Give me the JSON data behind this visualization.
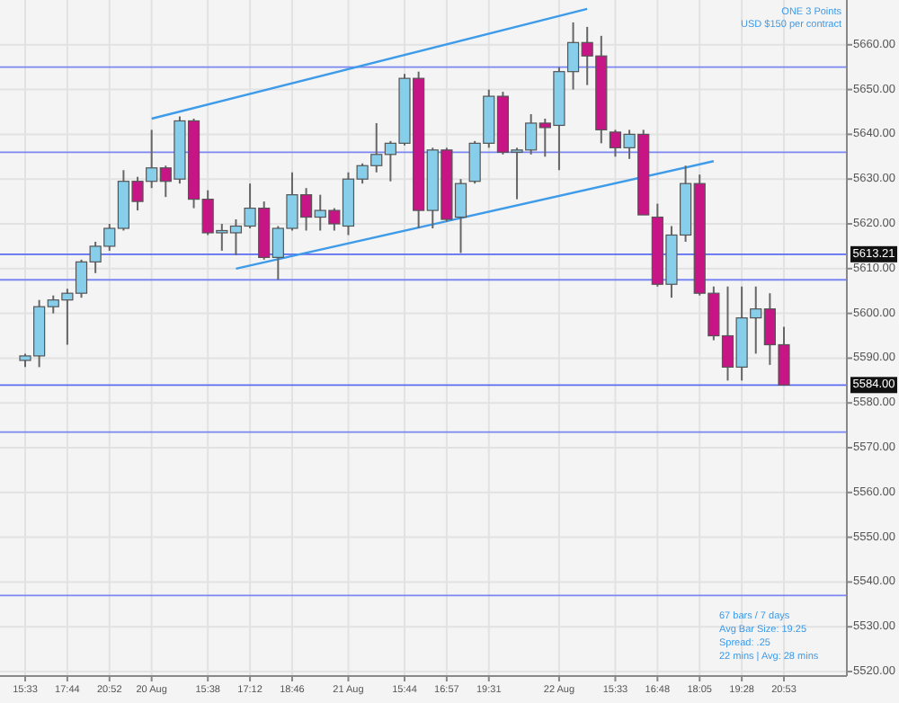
{
  "chart_data": {
    "type": "candlestick",
    "categories": [
      "15:33",
      null,
      null,
      "17:44",
      null,
      null,
      "20:52",
      null,
      null,
      "20 Aug",
      null,
      null,
      null,
      "15:38",
      null,
      null,
      "17:12",
      null,
      null,
      "18:46",
      null,
      null,
      null,
      "21 Aug",
      null,
      null,
      null,
      "15:44",
      null,
      null,
      "16:57",
      null,
      null,
      "19:31",
      null,
      null,
      null,
      null,
      "22 Aug",
      null,
      null,
      null,
      "15:33",
      null,
      null,
      "16:48",
      null,
      null,
      "18:05",
      null,
      null,
      "19:28",
      null,
      null,
      "20:53"
    ],
    "ohlc": [
      [
        5589.5,
        5591,
        5588,
        5590.5
      ],
      [
        5590.5,
        5603,
        5588,
        5601.5
      ],
      [
        5601.5,
        5604,
        5600,
        5603
      ],
      [
        5603,
        5605.5,
        5593,
        5604.5
      ],
      [
        5604.5,
        5612,
        5603.5,
        5611.5
      ],
      [
        5611.5,
        5616,
        5609,
        5615
      ],
      [
        5615,
        5620,
        5614,
        5619
      ],
      [
        5619,
        5632,
        5618.5,
        5629.5
      ],
      [
        5629.5,
        5630.5,
        5623,
        5625
      ],
      [
        5629.5,
        5641,
        5628,
        5632.5
      ],
      [
        5632.5,
        5633,
        5626,
        5629.5
      ],
      [
        5630,
        5644,
        5629,
        5643
      ],
      [
        5643,
        5643.5,
        5623.5,
        5625.5
      ],
      [
        5625.5,
        5627.5,
        5617.5,
        5618
      ],
      [
        5618,
        5620,
        5614,
        5618.5
      ],
      [
        5618,
        5621,
        5613,
        5619.5
      ],
      [
        5619.5,
        5629,
        5619,
        5623.5
      ],
      [
        5623.5,
        5625,
        5612,
        5612.5
      ],
      [
        5612.5,
        5619.5,
        5607.5,
        5619
      ],
      [
        5619,
        5631.5,
        5618.5,
        5626.5
      ],
      [
        5626.5,
        5628,
        5618.5,
        5621.5
      ],
      [
        5621.5,
        5626.5,
        5618.5,
        5623
      ],
      [
        5623,
        5623.5,
        5618.5,
        5620
      ],
      [
        5619.5,
        5631.5,
        5617.5,
        5630
      ],
      [
        5630,
        5633.5,
        5629,
        5633
      ],
      [
        5633,
        5642.5,
        5631.5,
        5635.5
      ],
      [
        5635.5,
        5638.5,
        5629.5,
        5638
      ],
      [
        5638,
        5653.5,
        5637.5,
        5652.5
      ],
      [
        5652.5,
        5654,
        5619,
        5623
      ],
      [
        5623,
        5637,
        5619,
        5636.5
      ],
      [
        5636.5,
        5637,
        5620.5,
        5621
      ],
      [
        5621.5,
        5630,
        5613.5,
        5629
      ],
      [
        5629.5,
        5638.5,
        5629,
        5638
      ],
      [
        5638,
        5650,
        5637,
        5648.5
      ],
      [
        5648.5,
        5649.5,
        5635.5,
        5636
      ],
      [
        5636,
        5637,
        5625.5,
        5636.5
      ],
      [
        5636.5,
        5644.5,
        5635.5,
        5642.5
      ],
      [
        5642.5,
        5643.5,
        5635,
        5641.5
      ],
      [
        5642,
        5655,
        5632,
        5654
      ],
      [
        5654,
        5665,
        5650,
        5660.5
      ],
      [
        5660.5,
        5664,
        5651,
        5657.5
      ],
      [
        5657.5,
        5662,
        5638,
        5641
      ],
      [
        5640.5,
        5641,
        5635,
        5637
      ],
      [
        5637,
        5641,
        5634.5,
        5640
      ],
      [
        5640,
        5641,
        5622,
        5622
      ],
      [
        5621.5,
        5624.5,
        5606,
        5606.5
      ],
      [
        5606.5,
        5619.5,
        5603.5,
        5617.5
      ],
      [
        5617.5,
        5633,
        5616,
        5629
      ],
      [
        5629,
        5631,
        5604,
        5604.5
      ],
      [
        5604.5,
        5606,
        5594,
        5595
      ],
      [
        5595,
        5606,
        5585,
        5588
      ],
      [
        5588,
        5606,
        5585,
        5599
      ],
      [
        5599,
        5606,
        5591,
        5601
      ],
      [
        5601,
        5604.5,
        5588.5,
        5593
      ],
      [
        5593,
        5597,
        5584,
        5584
      ]
    ],
    "series": [
      {
        "type": "line",
        "color": "#3d9be9",
        "values": [
          null,
          null,
          null,
          null,
          null,
          null,
          null,
          null,
          null,
          5643.5,
          null,
          null,
          null,
          null,
          null,
          null,
          null,
          null,
          null,
          null,
          null,
          null,
          null,
          null,
          null,
          null,
          null,
          null,
          null,
          null,
          null,
          null,
          null,
          null,
          null,
          null,
          null,
          null,
          null,
          null,
          5668,
          null,
          null,
          null,
          null,
          null,
          null,
          null,
          null,
          null,
          null,
          null,
          null,
          null,
          null
        ]
      },
      {
        "type": "line",
        "color": "#3d9be9",
        "values": [
          null,
          null,
          null,
          null,
          null,
          null,
          null,
          null,
          null,
          null,
          null,
          null,
          null,
          null,
          null,
          5610,
          null,
          null,
          null,
          null,
          null,
          null,
          null,
          null,
          null,
          null,
          null,
          null,
          null,
          null,
          null,
          null,
          null,
          null,
          null,
          null,
          null,
          null,
          null,
          null,
          null,
          null,
          null,
          null,
          null,
          null,
          null,
          null,
          null,
          5634,
          null,
          null,
          null,
          null,
          null
        ]
      }
    ],
    "ylim": [
      5519,
      5670
    ],
    "yticks": [
      {
        "value": 5520,
        "label": "5520.00"
      },
      {
        "value": 5530,
        "label": "5530.00"
      },
      {
        "value": 5540,
        "label": "5540.00"
      },
      {
        "value": 5550,
        "label": "5550.00"
      },
      {
        "value": 5560,
        "label": "5560.00"
      },
      {
        "value": 5570,
        "label": "5570.00"
      },
      {
        "value": 5580,
        "label": "5580.00"
      },
      {
        "value": 5590,
        "label": "5590.00"
      },
      {
        "value": 5600,
        "label": "5600.00"
      },
      {
        "value": 5610,
        "label": "5610.00"
      },
      {
        "value": 5620,
        "label": "5620.00"
      },
      {
        "value": 5630,
        "label": "5630.00"
      },
      {
        "value": 5640,
        "label": "5640.00"
      },
      {
        "value": 5650,
        "label": "5650.00"
      },
      {
        "value": 5660,
        "label": "5660.00"
      }
    ],
    "grid": true,
    "ref_lines": [
      {
        "axis": "y",
        "value": 5613.21,
        "label": "5613.21",
        "color": "#5b6cf0"
      },
      {
        "axis": "y",
        "value": 5584,
        "label": "5584.00",
        "color": "#5b6cf0"
      },
      {
        "axis": "y",
        "value": 5655,
        "label": null,
        "color": "#7b86f2"
      },
      {
        "axis": "y",
        "value": 5636,
        "label": null,
        "color": "#7b86f2"
      },
      {
        "axis": "y",
        "value": 5607.5,
        "label": null,
        "color": "#7b86f2"
      },
      {
        "axis": "y",
        "value": 5573.5,
        "label": null,
        "color": "#7b86f2"
      },
      {
        "axis": "y",
        "value": 5537,
        "label": null,
        "color": "#7b86f2"
      }
    ],
    "annotations": [
      "ONE 3 Points",
      "USD $150 per contract",
      "67 bars / 7 days",
      "Avg Bar Size: 19.25",
      "Spread: .25",
      "22 mins | Avg: 28 mins"
    ]
  }
}
